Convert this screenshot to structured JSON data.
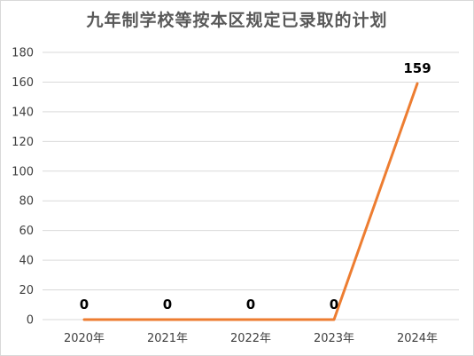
{
  "chart_data": {
    "type": "line",
    "title": "九年制学校等按本区规定已录取的计划",
    "categories": [
      "2020年",
      "2021年",
      "2022年",
      "2023年",
      "2024年"
    ],
    "series": [
      {
        "values": [
          0,
          0,
          0,
          0,
          159
        ]
      }
    ],
    "data_labels": [
      "0",
      "0",
      "0",
      "0",
      "159"
    ],
    "y_ticks": [
      "0",
      "20",
      "40",
      "60",
      "80",
      "100",
      "120",
      "140",
      "160",
      "180"
    ],
    "ylim": [
      0,
      180
    ],
    "grid": true,
    "legend": "none",
    "colors": {
      "line": "#ED7D31",
      "grid": "#d9d9d9"
    }
  }
}
